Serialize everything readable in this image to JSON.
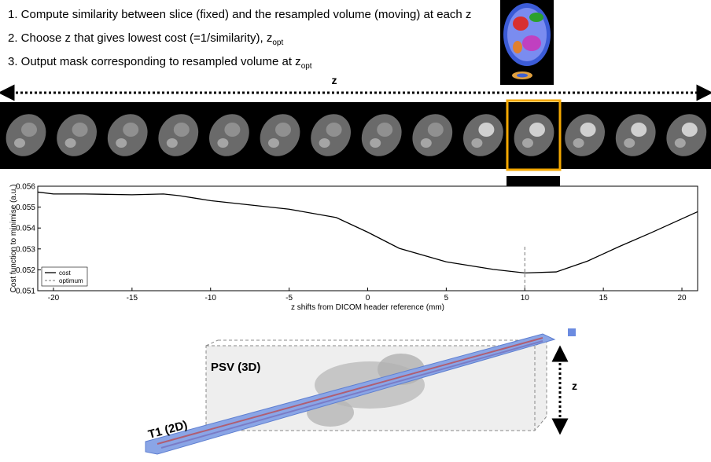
{
  "steps": [
    {
      "text": "1. Compute similarity between slice (fixed) and the resampled volume (moving) at each z"
    },
    {
      "text": "2. Choose z that gives lowest cost (=1/similarity), z",
      "sub": "opt"
    },
    {
      "text": "3. Output mask corresponding to resampled volume at z",
      "sub": "opt"
    }
  ],
  "z_axis_label": "z",
  "volume_labels": {
    "psv": "PSV (3D)",
    "t1": "T1 (2D)",
    "z": "z"
  },
  "chart_data": {
    "type": "line",
    "xlabel": "z shifts from DICOM header reference (mm)",
    "ylabel": "Cost function to minimise (a.u.)",
    "xlim": [
      -21,
      21
    ],
    "ylim": [
      0.051,
      0.056
    ],
    "xticks": [
      -20,
      -15,
      -10,
      -5,
      0,
      5,
      10,
      15,
      20
    ],
    "yticks": [
      0.051,
      0.052,
      0.053,
      0.054,
      0.055,
      0.056
    ],
    "legend": "lower left",
    "series": [
      {
        "name": "cost",
        "color": "#000000",
        "x": [
          -21,
          -20,
          -18,
          -15,
          -13,
          -12,
          -10,
          -5,
          -2,
          0,
          2,
          5,
          8,
          10,
          12,
          14,
          16,
          18,
          21
        ],
        "values": [
          0.05572,
          0.05563,
          0.05563,
          0.05559,
          0.05563,
          0.05555,
          0.05531,
          0.0549,
          0.0545,
          0.0538,
          0.05303,
          0.05238,
          0.05202,
          0.05185,
          0.0519,
          0.05242,
          0.05311,
          0.05376,
          0.05478
        ]
      }
    ],
    "optimum": {
      "name": "optimum",
      "color": "#777777",
      "x": 10
    }
  }
}
